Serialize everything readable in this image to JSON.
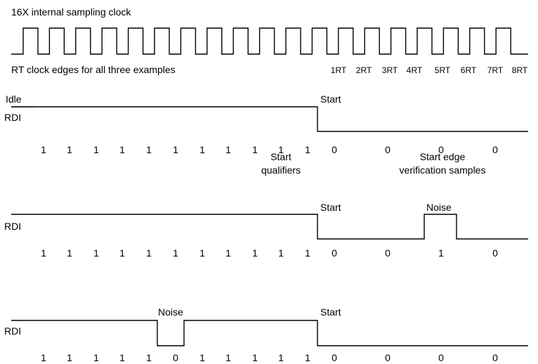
{
  "header": {
    "clock_title": "16X internal sampling clock",
    "rt_caption": "RT clock edges for all three examples",
    "rt_labels": [
      "1RT",
      "2RT",
      "3RT",
      "4RT",
      "5RT",
      "6RT",
      "7RT",
      "8RT"
    ]
  },
  "examples": [
    {
      "signal_label": "RDI",
      "top_left_label": "Idle",
      "markers": [
        {
          "text": "Start"
        }
      ],
      "samples": [
        "1",
        "1",
        "1",
        "1",
        "1",
        "1",
        "1",
        "1",
        "1",
        "1",
        "1",
        "0",
        "0",
        "0",
        "0"
      ],
      "annotations": [
        {
          "lines": [
            "Start",
            "qualifiers"
          ]
        },
        {
          "lines": [
            "Start edge",
            "verification samples"
          ]
        }
      ]
    },
    {
      "signal_label": "RDI",
      "markers": [
        {
          "text": "Start"
        },
        {
          "text": "Noise"
        }
      ],
      "samples": [
        "1",
        "1",
        "1",
        "1",
        "1",
        "1",
        "1",
        "1",
        "1",
        "1",
        "1",
        "0",
        "0",
        "1",
        "0"
      ]
    },
    {
      "signal_label": "RDI",
      "markers": [
        {
          "text": "Noise"
        },
        {
          "text": "Start"
        }
      ],
      "samples": [
        "1",
        "1",
        "1",
        "1",
        "1",
        "0",
        "1",
        "1",
        "1",
        "1",
        "1",
        "0",
        "0",
        "0",
        "0"
      ]
    }
  ]
}
